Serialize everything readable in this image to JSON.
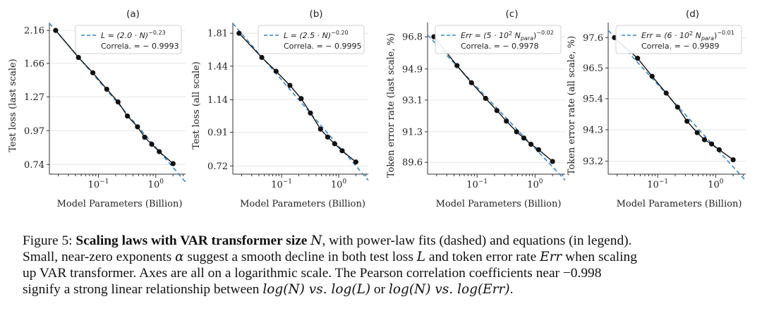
{
  "colors": {
    "fit": "#3a86c8",
    "data": "#111111",
    "axis": "#333333",
    "grid": "#e6e6e6"
  },
  "chart_data": [
    {
      "type": "line",
      "panel_label": "(a)",
      "xlabel": "Model Parameters (Billion)",
      "ylabel": "Test loss (last scale)",
      "x_scale": "log",
      "y_scale": "log",
      "xlim": [
        0.014,
        3.3
      ],
      "ylim": [
        0.685,
        2.3
      ],
      "x_ticks": [
        {
          "value": 0.1,
          "base": "10",
          "exp": "−1"
        },
        {
          "value": 1,
          "base": "10",
          "exp": "0"
        }
      ],
      "y_ticks": [
        {
          "value": 0.74,
          "label": "0.74"
        },
        {
          "value": 0.97,
          "label": "0.97"
        },
        {
          "value": 1.27,
          "label": "1.27"
        },
        {
          "value": 1.66,
          "label": "1.66"
        },
        {
          "value": 2.16,
          "label": "2.16"
        }
      ],
      "series": [
        {
          "x": [
            0.018,
            0.045,
            0.08,
            0.14,
            0.22,
            0.32,
            0.48,
            0.64,
            0.85,
            1.15,
            2.0
          ],
          "y": [
            2.16,
            1.74,
            1.54,
            1.35,
            1.22,
            1.09,
            1.0,
            0.92,
            0.87,
            0.82,
            0.745
          ]
        }
      ],
      "fit": {
        "coefficient": 2.0,
        "exponent": -0.23
      },
      "legend": {
        "position": "top-right",
        "fit_prefix": "L = (2.0 · N)",
        "fit_exp": "−0.23",
        "corr_text": "Correla. = − 0.9993"
      },
      "grid": "horizontal"
    },
    {
      "type": "line",
      "panel_label": "(b)",
      "xlabel": "Model Parameters (Billion)",
      "ylabel": "Test loss (all scale)",
      "x_scale": "log",
      "y_scale": "log",
      "xlim": [
        0.014,
        3.3
      ],
      "ylim": [
        0.68,
        1.95
      ],
      "x_ticks": [
        {
          "value": 0.1,
          "base": "10",
          "exp": "−1"
        },
        {
          "value": 1,
          "base": "10",
          "exp": "0"
        }
      ],
      "y_ticks": [
        {
          "value": 0.72,
          "label": "0.72"
        },
        {
          "value": 0.91,
          "label": "0.91"
        },
        {
          "value": 1.14,
          "label": "1.14"
        },
        {
          "value": 1.44,
          "label": "1.44"
        },
        {
          "value": 1.81,
          "label": "1.81"
        }
      ],
      "series": [
        {
          "x": [
            0.018,
            0.045,
            0.08,
            0.14,
            0.22,
            0.32,
            0.48,
            0.64,
            0.85,
            1.15,
            2.0
          ],
          "y": [
            1.81,
            1.53,
            1.39,
            1.26,
            1.15,
            1.04,
            0.93,
            0.88,
            0.84,
            0.8,
            0.74
          ]
        }
      ],
      "fit": {
        "coefficient": 2.5,
        "exponent": -0.2
      },
      "legend": {
        "position": "top-right",
        "fit_prefix": "L = (2.5 · N)",
        "fit_exp": "−0.20",
        "corr_text": "Correla. = − 0.9995"
      },
      "grid": "horizontal"
    },
    {
      "type": "line",
      "panel_label": "(c)",
      "xlabel": "Model Parameters (Billion)",
      "ylabel": "Token error rate (last scale, %)",
      "x_scale": "log",
      "y_scale": "log",
      "xlim": [
        0.014,
        3.3
      ],
      "ylim": [
        88.95,
        97.65
      ],
      "x_ticks": [
        {
          "value": 0.1,
          "base": "10",
          "exp": "−1"
        },
        {
          "value": 1,
          "base": "10",
          "exp": "0"
        }
      ],
      "y_ticks": [
        {
          "value": 89.6,
          "label": "89.6"
        },
        {
          "value": 91.3,
          "label": "91.3"
        },
        {
          "value": 93.1,
          "label": "93.1"
        },
        {
          "value": 94.9,
          "label": "94.9"
        },
        {
          "value": 96.8,
          "label": "96.8"
        }
      ],
      "series": [
        {
          "x": [
            0.018,
            0.045,
            0.08,
            0.14,
            0.22,
            0.32,
            0.48,
            0.64,
            0.85,
            1.15,
            2.0
          ],
          "y": [
            96.8,
            95.1,
            94.1,
            93.2,
            92.5,
            91.9,
            91.3,
            90.95,
            90.6,
            90.3,
            89.65
          ]
        }
      ],
      "fit": {
        "coefficient": 500,
        "exponent": -0.02
      },
      "legend": {
        "position": "top-right",
        "fit_prefix": "Err = (5 · 10",
        "fit_sup1": "2",
        "fit_mid": " N",
        "fit_sub": "para",
        "fit_close": ")",
        "fit_exp": "−0.02",
        "corr_text": "Correla. = − 0.9978"
      },
      "grid": "horizontal"
    },
    {
      "type": "line",
      "panel_label": "(d)",
      "xlabel": "Model Parameters (Billion)",
      "ylabel": "Token error rate (all scale, %)",
      "x_scale": "log",
      "y_scale": "log",
      "xlim": [
        0.014,
        3.3
      ],
      "ylim": [
        92.75,
        98.15
      ],
      "x_ticks": [
        {
          "value": 0.1,
          "base": "10",
          "exp": "−1"
        },
        {
          "value": 1,
          "base": "10",
          "exp": "0"
        }
      ],
      "y_ticks": [
        {
          "value": 93.2,
          "label": "93.2"
        },
        {
          "value": 94.3,
          "label": "94.3"
        },
        {
          "value": 95.4,
          "label": "95.4"
        },
        {
          "value": 96.5,
          "label": "96.5"
        },
        {
          "value": 97.6,
          "label": "97.6"
        }
      ],
      "series": [
        {
          "x": [
            0.018,
            0.045,
            0.08,
            0.14,
            0.22,
            0.32,
            0.48,
            0.64,
            0.85,
            1.15,
            2.0
          ],
          "y": [
            97.6,
            96.85,
            96.2,
            95.6,
            95.1,
            94.6,
            94.2,
            93.95,
            93.8,
            93.6,
            93.25
          ]
        }
      ],
      "fit": {
        "coefficient": 600,
        "exponent": -0.01
      },
      "legend": {
        "position": "top-right",
        "fit_prefix": "Err = (6 · 10",
        "fit_sup1": "2",
        "fit_mid": " N",
        "fit_sub": "para",
        "fit_close": ")",
        "fit_exp": "−0.01",
        "corr_text": "Correla. = − 0.9989"
      },
      "grid": "horizontal"
    }
  ],
  "caption": {
    "fig_label": "Figure 5: ",
    "bold_title": "Scaling laws with VAR transformer size ",
    "bold_var": "N",
    "line1_rest": ", with power-law fits (dashed) and equations (in legend).",
    "line2_a": "Small, near-zero exponents ",
    "alpha": "α",
    "line2_b": " suggest a smooth decline in both test loss ",
    "L": "L",
    "line2_c": " and token error rate ",
    "Err": "Err",
    "line2_d": " when scaling",
    "line3": "up VAR transformer. Axes are all on a logarithmic scale. The Pearson correlation coefficients near −0.998",
    "line4_a": "signify a strong linear relationship between ",
    "logN": "log(N)",
    "vs": " vs. ",
    "logL": "log(L)",
    "or": " or ",
    "logN2": "log(N)",
    "vs2": " vs. ",
    "logErr": "log(Err)",
    "period": "."
  }
}
